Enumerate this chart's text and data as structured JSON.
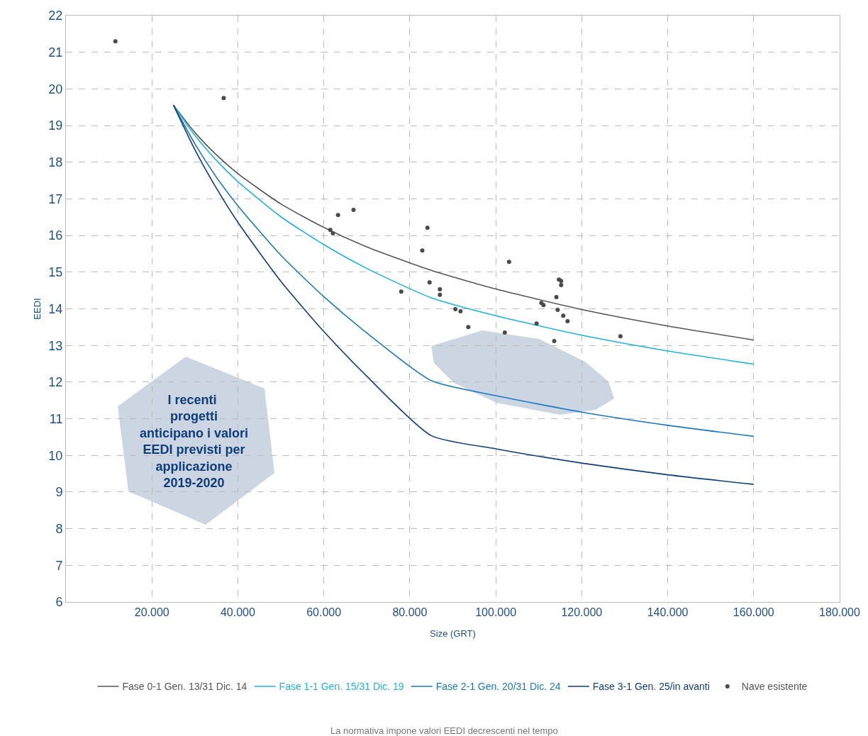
{
  "chart_data": {
    "type": "line",
    "xlabel": "Size (GRT)",
    "ylabel": "EEDI",
    "xlim": [
      0,
      180000
    ],
    "ylim": [
      6,
      22
    ],
    "xticks": [
      {
        "value": 20000,
        "label": "20.000"
      },
      {
        "value": 40000,
        "label": "40.000"
      },
      {
        "value": 60000,
        "label": "60.000"
      },
      {
        "value": 80000,
        "label": "80.000"
      },
      {
        "value": 100000,
        "label": "100.000"
      },
      {
        "value": 120000,
        "label": "120.000"
      },
      {
        "value": 140000,
        "label": "140.000"
      },
      {
        "value": 160000,
        "label": "160.000"
      },
      {
        "value": 180000,
        "label": "180.000"
      }
    ],
    "yticks": [
      6,
      7,
      8,
      9,
      10,
      11,
      12,
      13,
      14,
      15,
      16,
      17,
      18,
      19,
      20,
      21,
      22
    ],
    "grid": true,
    "legend": "bottom",
    "line_style": "solid",
    "series": [
      {
        "name": "Fase 0-1 Gen. 13/31 Dic. 14",
        "color": "#555555",
        "x": [
          25000,
          30000,
          35000,
          40000,
          50000,
          60000,
          70000,
          85000,
          100000,
          120000,
          140000,
          160000
        ],
        "values": [
          19.56,
          18.81,
          18.2,
          17.69,
          16.86,
          16.22,
          15.69,
          15.05,
          14.54,
          13.98,
          13.53,
          13.15
        ]
      },
      {
        "name": "Fase 1-1 Gen. 15/31 Dic. 19",
        "color": "#1fb3e5",
        "x": [
          25000,
          30000,
          35000,
          40000,
          50000,
          60000,
          70000,
          85000,
          100000,
          120000,
          140000,
          160000
        ],
        "values": [
          19.56,
          18.73,
          18.05,
          17.47,
          16.51,
          15.75,
          15.1,
          14.3,
          13.81,
          13.28,
          12.85,
          12.49
        ]
      },
      {
        "name": "Fase 2-1 Gen. 20/31 Dic. 24",
        "color": "#1a78c2",
        "x": [
          25000,
          30000,
          35000,
          40000,
          50000,
          60000,
          70000,
          85000,
          100000,
          120000,
          140000,
          160000
        ],
        "values": [
          19.56,
          18.5,
          17.59,
          16.81,
          15.46,
          14.33,
          13.34,
          12.04,
          11.63,
          11.18,
          10.82,
          10.52
        ]
      },
      {
        "name": "Fase 3-1 Gen. 25/in avanti",
        "color": "#0d3d7a",
        "x": [
          25000,
          30000,
          35000,
          40000,
          50000,
          60000,
          70000,
          85000,
          100000,
          120000,
          140000,
          160000
        ],
        "values": [
          19.56,
          18.34,
          17.29,
          16.36,
          14.75,
          13.38,
          12.16,
          10.54,
          10.18,
          9.79,
          9.47,
          9.21
        ]
      },
      {
        "name": "Nave esistente",
        "type": "scatter",
        "marker": "circle",
        "color": "#4a4a4a",
        "x": [
          11500,
          36700,
          61500,
          62100,
          63300,
          66900,
          78000,
          82900,
          84100,
          84600,
          87000,
          87000,
          90600,
          91800,
          93600,
          102100,
          103100,
          109500,
          110600,
          111100,
          113600,
          114100,
          114400,
          114700,
          115200,
          115200,
          115700,
          116700,
          129000
        ],
        "values": [
          21.3,
          19.75,
          16.15,
          16.06,
          16.56,
          16.7,
          14.47,
          15.59,
          16.21,
          14.72,
          14.53,
          14.38,
          13.99,
          13.93,
          13.5,
          13.35,
          15.28,
          13.6,
          14.16,
          14.1,
          13.12,
          14.32,
          13.97,
          14.8,
          14.76,
          14.65,
          13.81,
          13.66,
          13.25
        ]
      }
    ],
    "annotations": [
      "I recenti progetti anticipano i valori EEDI previsti per applicazione 2019-2020",
      "La normativa impone valori EEDI decrescenti nel tempo"
    ]
  }
}
